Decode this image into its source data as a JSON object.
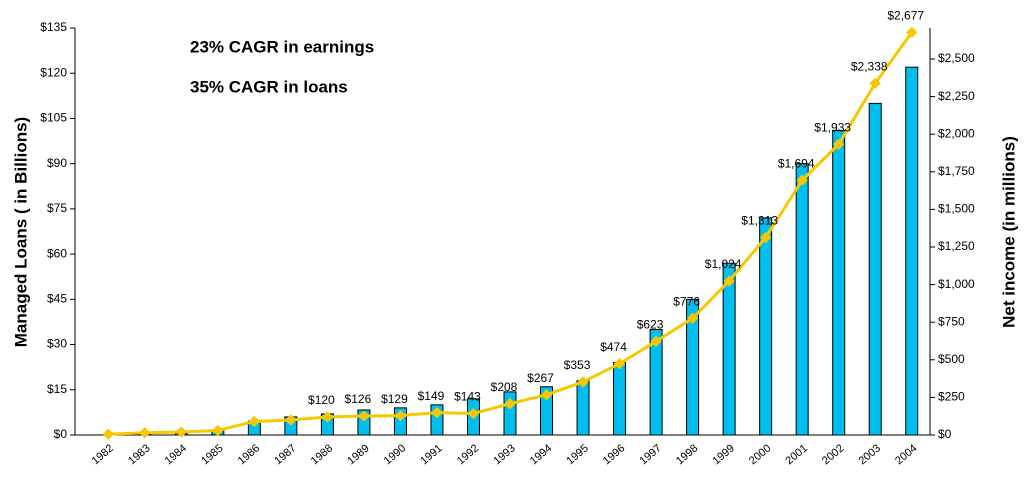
{
  "chart_data": {
    "type": "bar-line",
    "annotations": [
      "23% CAGR in earnings",
      "35% CAGR in loans"
    ],
    "y_label": "Managed Loans ( in Billions)",
    "y2_label": "Net income (in millions)",
    "categories": [
      "1982",
      "1983",
      "1984",
      "1985",
      "1986",
      "1987",
      "1988",
      "1989",
      "1990",
      "1991",
      "1992",
      "1993",
      "1994",
      "1995",
      "1996",
      "1997",
      "1998",
      "1999",
      "2000",
      "2001",
      "2002",
      "2003",
      "2004"
    ],
    "series": [
      {
        "type": "bar",
        "color": "#00bff0",
        "values": [
          0,
          0.2,
          0.5,
          1.5,
          4.6,
          6,
          7,
          8.3,
          9,
          10,
          12,
          14.3,
          16,
          18,
          24,
          35,
          45,
          57,
          72,
          90,
          101,
          110,
          122
        ]
      },
      {
        "type": "line",
        "axis": "y2",
        "color": "#f7c800",
        "values": [
          5,
          15,
          20,
          30,
          90,
          100,
          120,
          126,
          129,
          149,
          143,
          208,
          267,
          353,
          474,
          623,
          776,
          1024,
          1313,
          1694,
          1933,
          2338,
          2677
        ],
        "value_labels": [
          null,
          null,
          null,
          null,
          null,
          null,
          "$120",
          "$126",
          "$129",
          "$149",
          "$143",
          "$208",
          "$267",
          "$353",
          "$474",
          "$623",
          "$776",
          "$1,024",
          "$1,313",
          "$1,694",
          "$1,933",
          "$2,338",
          "$2,677"
        ]
      }
    ],
    "ylim": [
      0,
      135
    ],
    "yticks": [
      {
        "value": 0,
        "label": "$0"
      },
      {
        "value": 15,
        "label": "$15"
      },
      {
        "value": 30,
        "label": "$30"
      },
      {
        "value": 45,
        "label": "$45"
      },
      {
        "value": 60,
        "label": "$60"
      },
      {
        "value": 75,
        "label": "$75"
      },
      {
        "value": 90,
        "label": "$90"
      },
      {
        "value": 105,
        "label": "$105"
      },
      {
        "value": 120,
        "label": "$120"
      },
      {
        "value": 135,
        "label": "$135"
      }
    ],
    "y2lim": [
      0,
      2706
    ],
    "y2ticks": [
      {
        "value": 0,
        "label": "$0"
      },
      {
        "value": 250,
        "label": "$250"
      },
      {
        "value": 500,
        "label": "$500"
      },
      {
        "value": 750,
        "label": "$750"
      },
      {
        "value": 1000,
        "label": "$1,000"
      },
      {
        "value": 1250,
        "label": "$1,250"
      },
      {
        "value": 1500,
        "label": "$1,500"
      },
      {
        "value": 1750,
        "label": "$1,750"
      },
      {
        "value": 2000,
        "label": "$2,000"
      },
      {
        "value": 2250,
        "label": "$2,250"
      },
      {
        "value": 2500,
        "label": "$2,500"
      }
    ]
  }
}
